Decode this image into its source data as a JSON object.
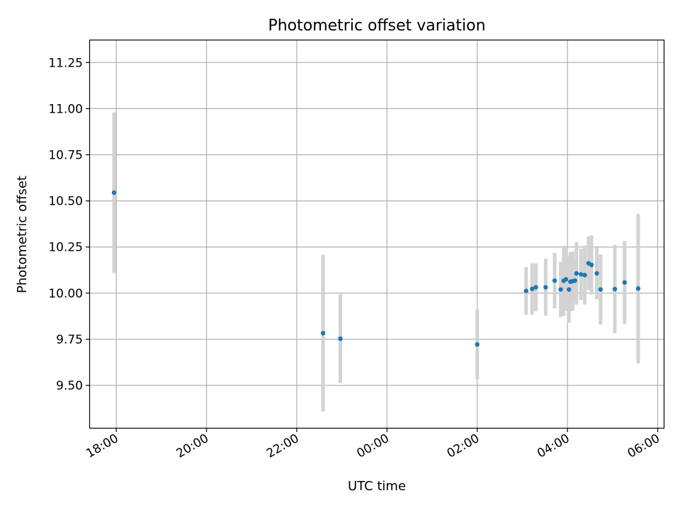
{
  "chart_data": {
    "type": "scatter",
    "title": "Photometric offset variation",
    "xlabel": "UTC time",
    "ylabel": "Photometric offset",
    "x_axis_kind": "time",
    "x_ticks": [
      "18:00",
      "20:00",
      "22:00",
      "00:00",
      "02:00",
      "04:00",
      "06:00"
    ],
    "y_ticks": [
      "9.50",
      "9.75",
      "10.00",
      "10.25",
      "10.50",
      "10.75",
      "11.00",
      "11.25"
    ],
    "xlim": [
      "17:25",
      "06:08"
    ],
    "ylim": [
      9.27,
      11.37
    ],
    "grid": true,
    "marker_color": "#1f77b4",
    "errorbar_color": "#d3d3d3",
    "points": [
      {
        "t": "17:57",
        "y": 10.545,
        "err": 0.435
      },
      {
        "t": "22:35",
        "y": 9.783,
        "err": 0.425
      },
      {
        "t": "22:58",
        "y": 9.753,
        "err": 0.24
      },
      {
        "t": "02:00",
        "y": 9.722,
        "err": 0.19
      },
      {
        "t": "03:05",
        "y": 10.012,
        "err": 0.13
      },
      {
        "t": "03:13",
        "y": 10.023,
        "err": 0.14
      },
      {
        "t": "03:18",
        "y": 10.032,
        "err": 0.13
      },
      {
        "t": "03:31",
        "y": 10.032,
        "err": 0.155
      },
      {
        "t": "03:43",
        "y": 10.068,
        "err": 0.15
      },
      {
        "t": "03:51",
        "y": 10.02,
        "err": 0.15
      },
      {
        "t": "03:55",
        "y": 10.067,
        "err": 0.19
      },
      {
        "t": "03:58",
        "y": 10.075,
        "err": 0.17
      },
      {
        "t": "04:02",
        "y": 10.02,
        "err": 0.18
      },
      {
        "t": "04:04",
        "y": 10.062,
        "err": 0.16
      },
      {
        "t": "04:07",
        "y": 10.065,
        "err": 0.16
      },
      {
        "t": "04:10",
        "y": 10.068,
        "err": 0.11
      },
      {
        "t": "04:12",
        "y": 10.107,
        "err": 0.17
      },
      {
        "t": "04:18",
        "y": 10.102,
        "err": 0.14
      },
      {
        "t": "04:23",
        "y": 10.098,
        "err": 0.16
      },
      {
        "t": "04:28",
        "y": 10.162,
        "err": 0.145
      },
      {
        "t": "04:32",
        "y": 10.153,
        "err": 0.16
      },
      {
        "t": "04:39",
        "y": 10.107,
        "err": 0.14
      },
      {
        "t": "04:44",
        "y": 10.02,
        "err": 0.19
      },
      {
        "t": "05:03",
        "y": 10.022,
        "err": 0.24
      },
      {
        "t": "05:16",
        "y": 10.058,
        "err": 0.225
      },
      {
        "t": "05:34",
        "y": 10.025,
        "err": 0.405
      }
    ]
  }
}
